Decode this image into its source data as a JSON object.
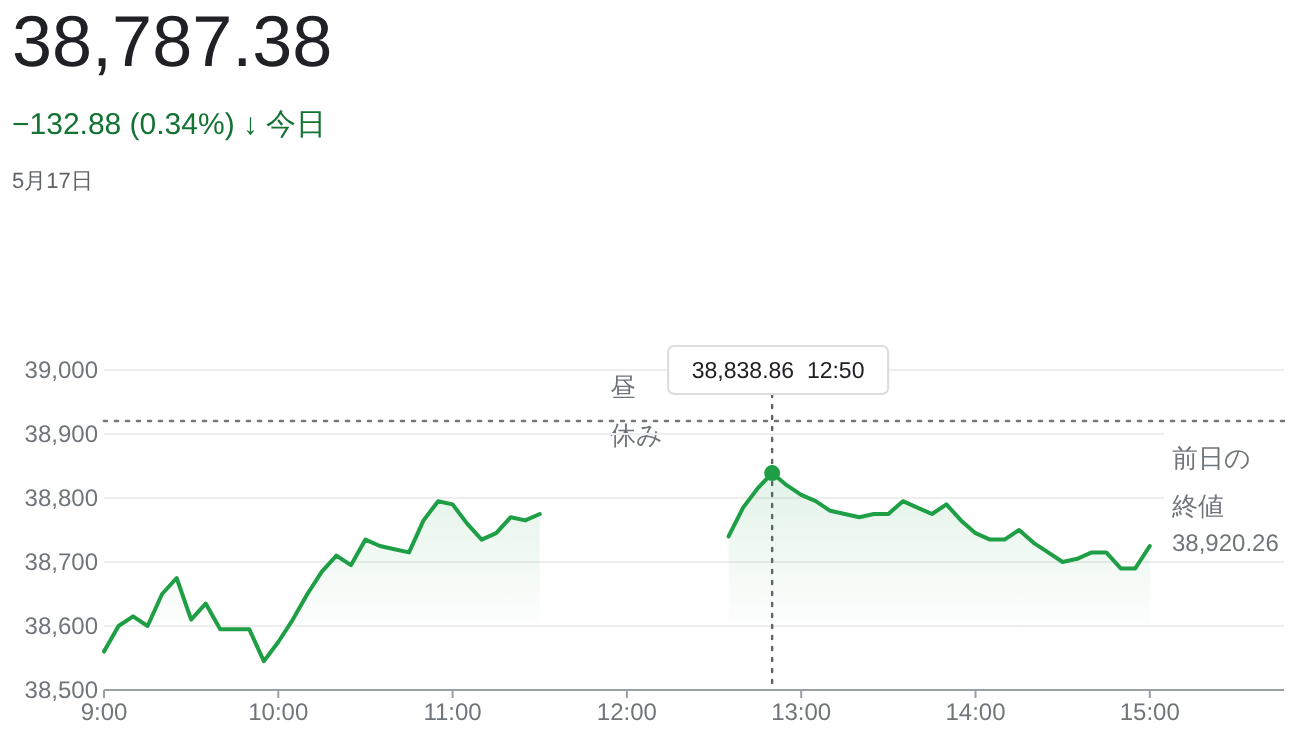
{
  "chart_data": {
    "type": "area",
    "title": "38,787.38",
    "subtitle": "−132.88 (0.34%) ↓ 今日",
    "annotations": [
      "5月17日",
      "昼休み",
      "38,838.86  12:50"
    ],
    "x": [
      9,
      9.0833,
      9.1667,
      9.25,
      9.3333,
      9.4167,
      9.5,
      9.5833,
      9.6667,
      9.75,
      9.8333,
      9.9167,
      10,
      10.0833,
      10.1667,
      10.25,
      10.3333,
      10.4167,
      10.5,
      10.5833,
      10.6667,
      10.75,
      10.8333,
      10.9167,
      11,
      11.0833,
      11.1667,
      11.25,
      11.3333,
      11.4167,
      11.5,
      12,
      12.5833,
      12.6667,
      12.75,
      12.8333,
      12.9167,
      13,
      13.0833,
      13.1667,
      13.25,
      13.3333,
      13.4167,
      13.5,
      13.5833,
      13.6667,
      13.75,
      13.8333,
      13.9167,
      14,
      14.0833,
      14.1667,
      14.25,
      14.3333,
      14.4167,
      14.5,
      14.5833,
      14.6667,
      14.75,
      14.8333,
      14.9167,
      15
    ],
    "series": [
      {
        "color": "#1e9e45",
        "values": [
          38560,
          38600,
          38615,
          38600,
          38650,
          38675,
          38610,
          38635,
          38595,
          38595,
          38595,
          38545,
          38575,
          38610,
          38650,
          38685,
          38710,
          38695,
          38735,
          38725,
          38720,
          38715,
          38765,
          38795,
          38790,
          38760,
          38735,
          38745,
          38770,
          38765,
          38775,
          null,
          38740,
          38785,
          38815,
          38839,
          38820,
          38805,
          38795,
          38780,
          38775,
          38770,
          38775,
          38775,
          38795,
          38785,
          38775,
          38790,
          38765,
          38745,
          38735,
          38735,
          38750,
          38730,
          38715,
          38700,
          38705,
          38715,
          38715,
          38690,
          38690,
          38725
        ]
      }
    ],
    "xlim": [
      9,
      15.77
    ],
    "xticks": [
      {
        "value": 9,
        "label": "9:00"
      },
      {
        "value": 10,
        "label": "10:00"
      },
      {
        "value": 11,
        "label": "11:00"
      },
      {
        "value": 12,
        "label": "12:00"
      },
      {
        "value": 13,
        "label": "13:00"
      },
      {
        "value": 14,
        "label": "14:00"
      },
      {
        "value": 15,
        "label": "15:00"
      }
    ],
    "ylim": [
      38500,
      39000
    ],
    "yticks": [
      {
        "value": 38500,
        "label": "38,500"
      },
      {
        "value": 38600,
        "label": "38,600"
      },
      {
        "value": 38700,
        "label": "38,700"
      },
      {
        "value": 38800,
        "label": "38,800"
      },
      {
        "value": 38900,
        "label": "38,900"
      },
      {
        "value": 39000,
        "label": "39,000"
      }
    ],
    "ref_lines": [
      {
        "axis": "y",
        "value": 38920.26,
        "label": "前日の終値 38,920.26",
        "color": "#777777",
        "line_style": "dotted"
      },
      {
        "axis": "x",
        "value": 12.8333,
        "color": "#5f6368",
        "line_style": "dotted"
      }
    ],
    "grid": "y",
    "marker": "none",
    "line_style": "solid"
  }
}
